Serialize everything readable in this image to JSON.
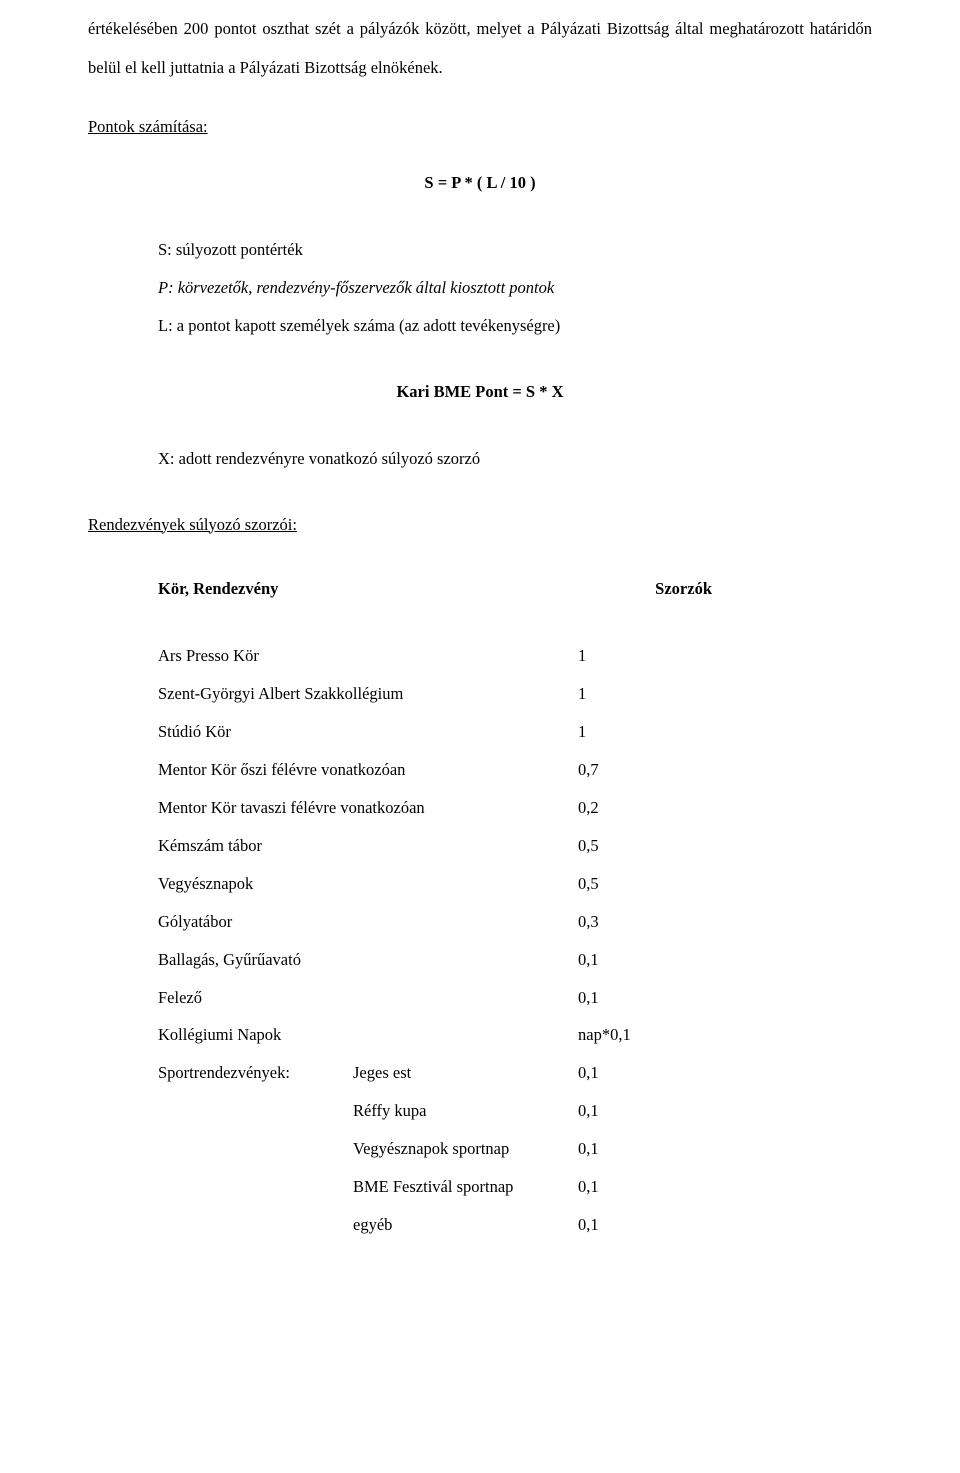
{
  "intro_paragraph": "értékelésében 200 pontot oszthat szét a pályázók között, melyet a Pályázati Bizottság által meghatározott határidőn belül el kell juttatnia a Pályázati Bizottság elnökének.",
  "scoring_heading": "Pontok számítása:",
  "formula_main": "S = P * ( L / 10 )",
  "defs": {
    "s": "S: súlyozott pontérték",
    "p": "P: körvezetők, rendezvény-főszervezők által kiosztott pontok",
    "l": "L: a pontot kapott személyek száma (az adott tevékenységre)"
  },
  "formula_kbp": "Kari BME Pont  =  S * X",
  "x_def": "X: adott rendezvényre vonatkozó súlyozó szorzó",
  "multipliers_heading": "Rendezvények súlyozó szorzói:",
  "table_header": {
    "left": "Kör, Rendezvény",
    "right": "Szorzók"
  },
  "rows": [
    {
      "label": "Ars Presso Kör",
      "value": "1"
    },
    {
      "label": "Szent-Györgyi Albert Szakkollégium",
      "value": "1"
    },
    {
      "label": "Stúdió Kör",
      "value": "1"
    },
    {
      "label": "Mentor Kör őszi félévre vonatkozóan",
      "value": "0,7"
    },
    {
      "label": "Mentor Kör tavaszi félévre vonatkozóan",
      "value": "0,2"
    },
    {
      "label": "Kémszám tábor",
      "value": "0,5"
    },
    {
      "label": "Vegyésznapok",
      "value": "0,5"
    },
    {
      "label": "Gólyatábor",
      "value": "0,3"
    },
    {
      "label": "Ballagás, Gyűrűavató",
      "value": "0,1"
    },
    {
      "label": "Felező",
      "value": "0,1"
    },
    {
      "label": "Kollégiumi Napok",
      "value": "nap*0,1"
    }
  ],
  "sport_label": "Sportrendezvények:",
  "sport_rows": [
    {
      "sub": "Jeges est",
      "value": "0,1"
    },
    {
      "sub": "Réffy kupa",
      "value": "0,1"
    },
    {
      "sub": "Vegyésznapok sportnap",
      "value": "0,1"
    },
    {
      "sub": "BME Fesztivál sportnap",
      "value": "0,1"
    },
    {
      "sub": "egyéb",
      "value": "0,1"
    }
  ]
}
